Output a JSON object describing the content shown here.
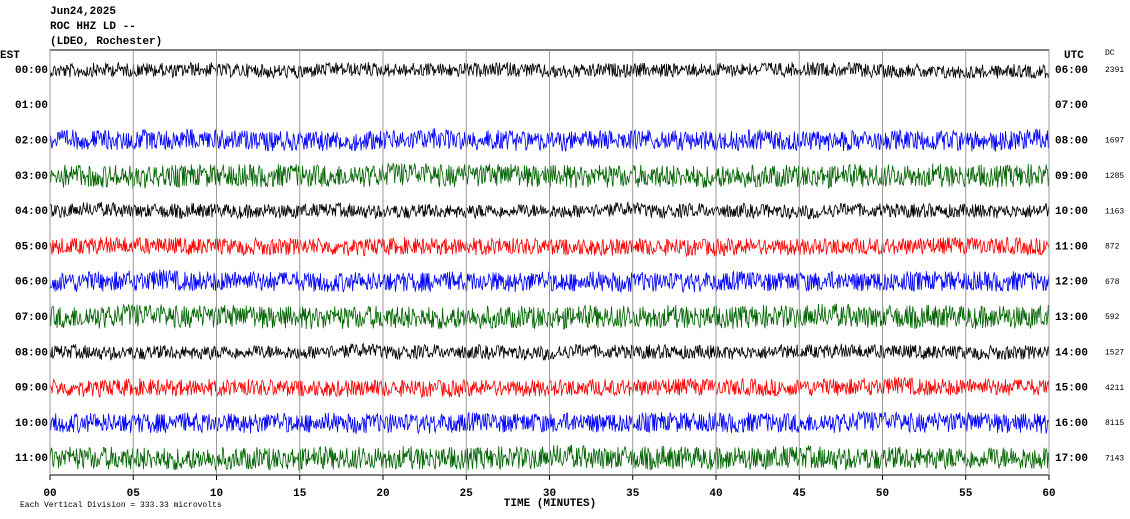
{
  "chart_data": {
    "type": "helicorder",
    "title_lines": [
      "Jun24,2025",
      "ROC HHZ LD --",
      "(LDEO, Rochester)"
    ],
    "left_axis_label": "EST",
    "right_axis_label": "UTC",
    "dc_label": "DC",
    "x_label": "TIME (MINUTES)",
    "footnote": "Each Vertical Division =  333.33 microvolts",
    "xlim": [
      0,
      60
    ],
    "xticks": [
      {
        "value": 0,
        "label": "00"
      },
      {
        "value": 5,
        "label": "05"
      },
      10,
      15,
      20,
      25,
      30,
      35,
      40,
      45,
      50,
      55,
      60
    ],
    "grid": true,
    "rows": [
      {
        "est": "00:00",
        "utc": "06:00",
        "dc": 2391,
        "color": "#000000"
      },
      {
        "est": "01:00",
        "utc": "07:00",
        "dc": null,
        "color": null
      },
      {
        "est": "02:00",
        "utc": "08:00",
        "dc": 1697,
        "color": "#0000ff"
      },
      {
        "est": "03:00",
        "utc": "09:00",
        "dc": 1285,
        "color": "#006400"
      },
      {
        "est": "04:00",
        "utc": "10:00",
        "dc": 1163,
        "color": "#000000"
      },
      {
        "est": "05:00",
        "utc": "11:00",
        "dc": 872,
        "color": "#ff0000"
      },
      {
        "est": "06:00",
        "utc": "12:00",
        "dc": 678,
        "color": "#0000ff"
      },
      {
        "est": "07:00",
        "utc": "13:00",
        "dc": 592,
        "color": "#006400"
      },
      {
        "est": "08:00",
        "utc": "14:00",
        "dc": 1527,
        "color": "#000000"
      },
      {
        "est": "09:00",
        "utc": "15:00",
        "dc": 4211,
        "color": "#ff0000"
      },
      {
        "est": "10:00",
        "utc": "16:00",
        "dc": 8115,
        "color": "#0000ff"
      },
      {
        "est": "11:00",
        "utc": "17:00",
        "dc": 7143,
        "color": "#006400"
      }
    ]
  }
}
